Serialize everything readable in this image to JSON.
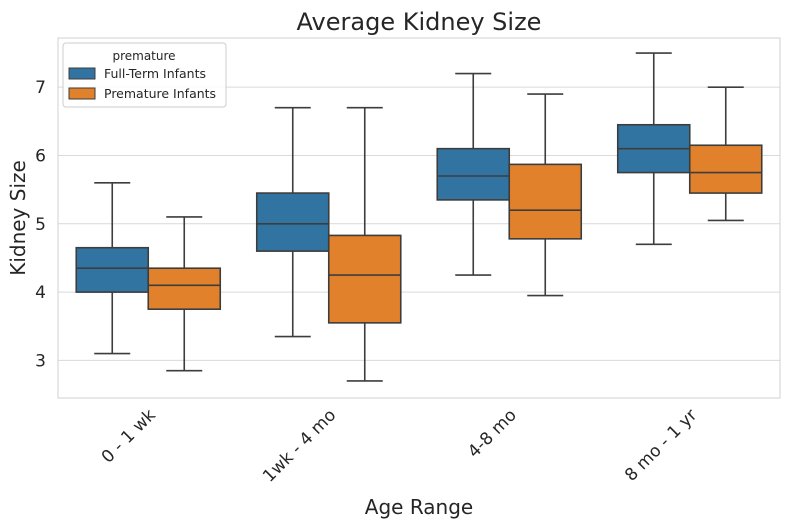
{
  "chart_data": {
    "type": "box",
    "title": "Average Kidney Size",
    "xlabel": "Age Range",
    "ylabel": "Kidney Size",
    "categories": [
      "0 - 1  wk",
      "1wk - 4 mo",
      "4-8 mo",
      "8 mo - 1 yr"
    ],
    "ylim": [
      2.45,
      7.72
    ],
    "yticks": [
      3,
      4,
      5,
      6,
      7
    ],
    "grid": "horizontal",
    "legend": {
      "title": "premature",
      "placement": "top-left"
    },
    "series": [
      {
        "name": "Full-Term Infants",
        "color": "#3274a1",
        "boxes": [
          {
            "whislo": 3.1,
            "q1": 4.0,
            "med": 4.35,
            "q3": 4.65,
            "whishi": 5.6
          },
          {
            "whislo": 3.35,
            "q1": 4.6,
            "med": 5.0,
            "q3": 5.45,
            "whishi": 6.7
          },
          {
            "whislo": 4.25,
            "q1": 5.35,
            "med": 5.7,
            "q3": 6.1,
            "whishi": 7.2
          },
          {
            "whislo": 4.7,
            "q1": 5.75,
            "med": 6.1,
            "q3": 6.45,
            "whishi": 7.5
          }
        ]
      },
      {
        "name": "Premature Infants",
        "color": "#e1812c",
        "boxes": [
          {
            "whislo": 2.85,
            "q1": 3.75,
            "med": 4.1,
            "q3": 4.35,
            "whishi": 5.1
          },
          {
            "whislo": 2.7,
            "q1": 3.55,
            "med": 4.25,
            "q3": 4.83,
            "whishi": 6.7
          },
          {
            "whislo": 3.95,
            "q1": 4.78,
            "med": 5.2,
            "q3": 5.87,
            "whishi": 6.9
          },
          {
            "whislo": 5.05,
            "q1": 5.45,
            "med": 5.75,
            "q3": 6.15,
            "whishi": 7.0
          }
        ]
      }
    ]
  }
}
